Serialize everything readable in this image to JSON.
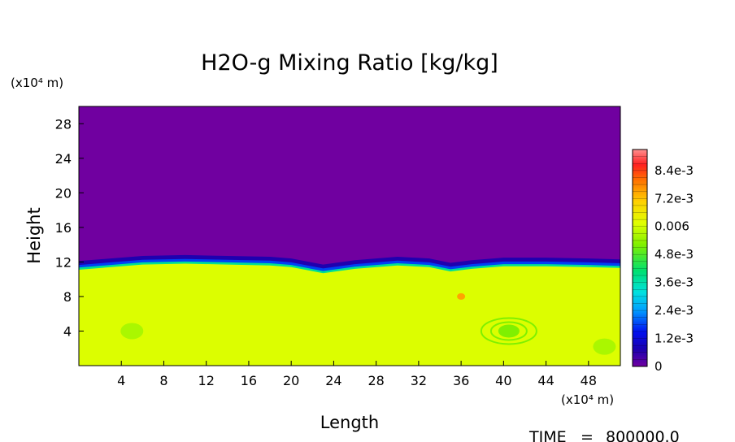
{
  "chart_data": {
    "type": "heatmap",
    "title": "H2O-g Mixing Ratio [kg/kg]",
    "xlabel": "Length",
    "ylabel": "Height",
    "x_unit": "(x10⁴ m)",
    "y_unit": "(x10⁴ m)",
    "xlim": [
      0,
      51
    ],
    "ylim": [
      0,
      30
    ],
    "x_ticks": [
      "4",
      "8",
      "12",
      "16",
      "20",
      "24",
      "28",
      "32",
      "36",
      "40",
      "44",
      "48"
    ],
    "y_ticks": [
      "4",
      "8",
      "12",
      "16",
      "20",
      "24",
      "28"
    ],
    "colorbar": {
      "min": 0,
      "max": 0.0093,
      "labels": [
        "8.4e-3",
        "7.2e-3",
        "0.006",
        "4.8e-3",
        "3.6e-3",
        "2.4e-3",
        "1.2e-3",
        "0"
      ],
      "label_values": [
        0.0084,
        0.0072,
        0.006,
        0.0048,
        0.0036,
        0.0024,
        0.0012,
        0
      ]
    },
    "field": {
      "upper_layer_value": 0,
      "lower_layer_value": 0.0061,
      "interface_height": [
        [
          0,
          11.1
        ],
        [
          3,
          11.4
        ],
        [
          6,
          11.7
        ],
        [
          10,
          11.8
        ],
        [
          14,
          11.7
        ],
        [
          18,
          11.6
        ],
        [
          20,
          11.4
        ],
        [
          23,
          10.7
        ],
        [
          26,
          11.2
        ],
        [
          30,
          11.6
        ],
        [
          33,
          11.4
        ],
        [
          35,
          10.9
        ],
        [
          37,
          11.2
        ],
        [
          40,
          11.5
        ],
        [
          44,
          11.5
        ],
        [
          48,
          11.4
        ],
        [
          51,
          11.3
        ]
      ],
      "features": [
        {
          "kind": "moist-patch",
          "x": 36,
          "y": 8,
          "value": 0.0075
        },
        {
          "kind": "moist-swirl",
          "x": 40.5,
          "y": 4,
          "value": 0.0052
        },
        {
          "kind": "moist-patch",
          "x": 5,
          "y": 4,
          "value": 0.0055
        },
        {
          "kind": "moist-patch",
          "x": 49.5,
          "y": 2.2,
          "value": 0.0055
        }
      ]
    }
  },
  "footer": {
    "time_label": "TIME",
    "time_eq": "=",
    "time_value": "800000.0"
  }
}
